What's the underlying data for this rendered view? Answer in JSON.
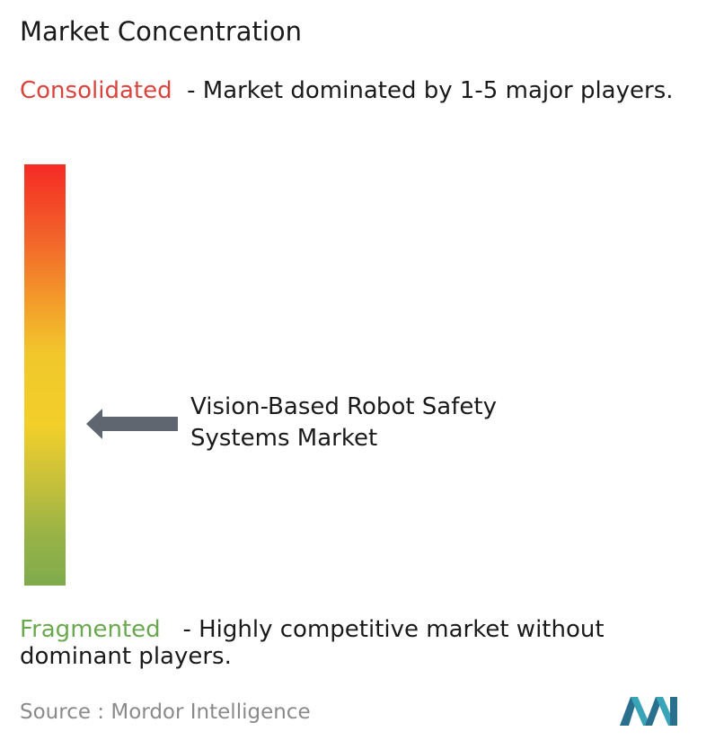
{
  "header": {
    "title": "Market Concentration"
  },
  "consolidated": {
    "label": "Consolidated",
    "description": "- Market dominated by 1-5 major players."
  },
  "marker": {
    "label": "Vision-Based Robot Safety Systems Market"
  },
  "fragmented": {
    "label": "Fragmented",
    "description": "- Highly competitive market without dominant players."
  },
  "footer": {
    "source": "Source : Mordor Intelligence"
  }
}
